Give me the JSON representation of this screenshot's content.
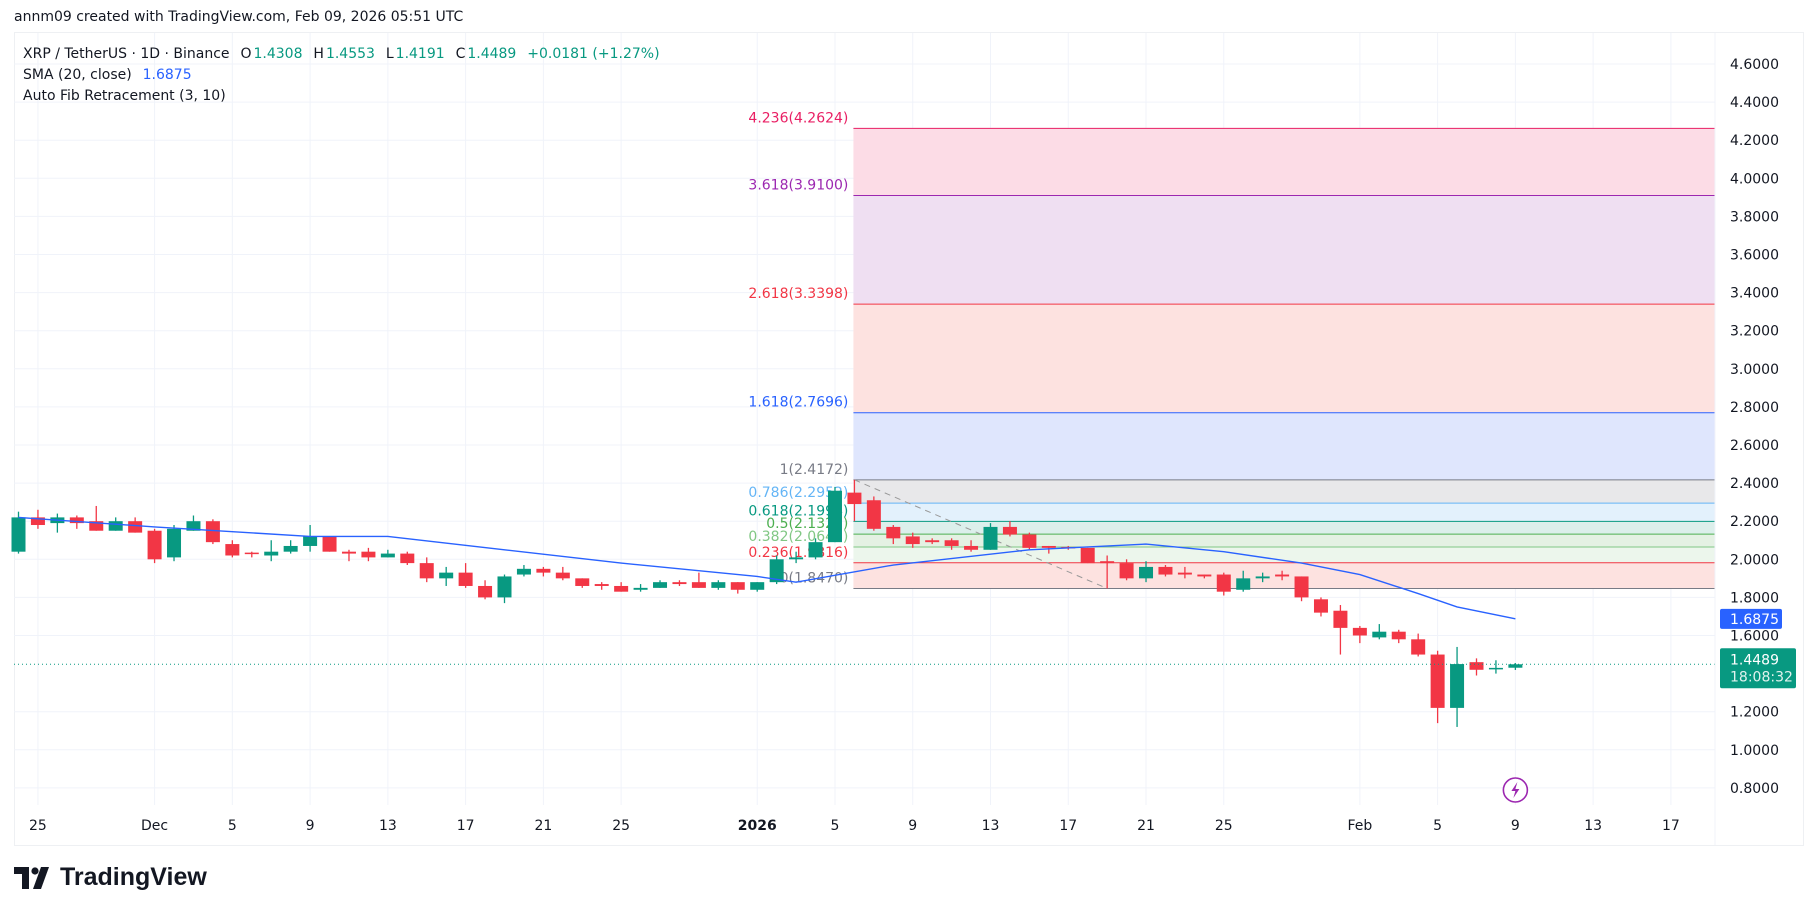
{
  "credit": "annm09 created with TradingView.com, Feb 09, 2026 05:51 UTC",
  "legend": {
    "symbol": "XRP / TetherUS · 1D · Binance",
    "o_label": "O",
    "o": "1.4308",
    "h_label": "H",
    "h": "1.4553",
    "l_label": "L",
    "l": "1.4191",
    "c_label": "C",
    "c": "1.4489",
    "change": "+0.0181 (+1.27%)",
    "sma_label": "SMA (20, close)",
    "sma_value": "1.6875",
    "fib_label": "Auto Fib Retracement (3, 10)"
  },
  "logo": {
    "text": "TradingView",
    "icon": "tradingview-logo-icon"
  },
  "icons": {
    "lightning": "lightning-icon"
  },
  "colors": {
    "up": "#089981",
    "down": "#f23645",
    "sma": "#2962ff",
    "grid": "#f0f3fa"
  },
  "chart_data": {
    "type": "candlestick",
    "title": "",
    "ylim": [
      0.7,
      4.7
    ],
    "grid": true,
    "y_ticks": [
      "4.6000",
      "4.4000",
      "4.2000",
      "4.0000",
      "3.8000",
      "3.6000",
      "3.4000",
      "3.2000",
      "3.0000",
      "2.8000",
      "2.6000",
      "2.4000",
      "2.2000",
      "2.0000",
      "1.8000",
      "1.6000",
      "1.2000",
      "1.0000",
      "0.8000"
    ],
    "x_ticks": [
      {
        "label": "25",
        "date": "2025-11-25"
      },
      {
        "label": "Dec",
        "date": "2025-12-01"
      },
      {
        "label": "5",
        "date": "2025-12-05"
      },
      {
        "label": "9",
        "date": "2025-12-09"
      },
      {
        "label": "13",
        "date": "2025-12-13"
      },
      {
        "label": "17",
        "date": "2025-12-17"
      },
      {
        "label": "21",
        "date": "2025-12-21"
      },
      {
        "label": "25",
        "date": "2025-12-25"
      },
      {
        "label": "2026",
        "date": "2026-01-01"
      },
      {
        "label": "5",
        "date": "2026-01-05"
      },
      {
        "label": "9",
        "date": "2026-01-09"
      },
      {
        "label": "13",
        "date": "2026-01-13"
      },
      {
        "label": "17",
        "date": "2026-01-17"
      },
      {
        "label": "21",
        "date": "2026-01-21"
      },
      {
        "label": "25",
        "date": "2026-01-25"
      },
      {
        "label": "Feb",
        "date": "2026-02-01"
      },
      {
        "label": "5",
        "date": "2026-02-05"
      },
      {
        "label": "9",
        "date": "2026-02-09"
      },
      {
        "label": "13",
        "date": "2026-02-13"
      },
      {
        "label": "17",
        "date": "2026-02-17"
      }
    ],
    "candles": [
      {
        "d": "2025-11-24",
        "o": 2.04,
        "h": 2.25,
        "l": 2.03,
        "c": 2.22
      },
      {
        "d": "2025-11-25",
        "o": 2.22,
        "h": 2.26,
        "l": 2.16,
        "c": 2.18
      },
      {
        "d": "2025-11-26",
        "o": 2.19,
        "h": 2.24,
        "l": 2.14,
        "c": 2.22
      },
      {
        "d": "2025-11-27",
        "o": 2.22,
        "h": 2.23,
        "l": 2.16,
        "c": 2.19
      },
      {
        "d": "2025-11-28",
        "o": 2.2,
        "h": 2.28,
        "l": 2.15,
        "c": 2.15
      },
      {
        "d": "2025-11-29",
        "o": 2.15,
        "h": 2.22,
        "l": 2.15,
        "c": 2.2
      },
      {
        "d": "2025-11-30",
        "o": 2.2,
        "h": 2.22,
        "l": 2.14,
        "c": 2.14
      },
      {
        "d": "2025-12-01",
        "o": 2.15,
        "h": 2.16,
        "l": 1.98,
        "c": 2.0
      },
      {
        "d": "2025-12-02",
        "o": 2.01,
        "h": 2.18,
        "l": 1.99,
        "c": 2.16
      },
      {
        "d": "2025-12-03",
        "o": 2.15,
        "h": 2.23,
        "l": 2.15,
        "c": 2.2
      },
      {
        "d": "2025-12-04",
        "o": 2.2,
        "h": 2.21,
        "l": 2.08,
        "c": 2.09
      },
      {
        "d": "2025-12-05",
        "o": 2.08,
        "h": 2.1,
        "l": 2.01,
        "c": 2.02
      },
      {
        "d": "2025-12-06",
        "o": 2.035,
        "h": 2.04,
        "l": 2.01,
        "c": 2.03
      },
      {
        "d": "2025-12-07",
        "o": 2.02,
        "h": 2.1,
        "l": 1.99,
        "c": 2.04
      },
      {
        "d": "2025-12-08",
        "o": 2.04,
        "h": 2.1,
        "l": 2.03,
        "c": 2.07
      },
      {
        "d": "2025-12-09",
        "o": 2.07,
        "h": 2.18,
        "l": 2.04,
        "c": 2.12
      },
      {
        "d": "2025-12-10",
        "o": 2.12,
        "h": 2.12,
        "l": 2.04,
        "c": 2.04
      },
      {
        "d": "2025-12-11",
        "o": 2.04,
        "h": 2.05,
        "l": 1.99,
        "c": 2.03
      },
      {
        "d": "2025-12-12",
        "o": 2.04,
        "h": 2.06,
        "l": 1.99,
        "c": 2.01
      },
      {
        "d": "2025-12-13",
        "o": 2.01,
        "h": 2.05,
        "l": 2.01,
        "c": 2.03
      },
      {
        "d": "2025-12-14",
        "o": 2.03,
        "h": 2.04,
        "l": 1.97,
        "c": 1.98
      },
      {
        "d": "2025-12-15",
        "o": 1.98,
        "h": 2.01,
        "l": 1.88,
        "c": 1.9
      },
      {
        "d": "2025-12-16",
        "o": 1.9,
        "h": 1.96,
        "l": 1.86,
        "c": 1.93
      },
      {
        "d": "2025-12-17",
        "o": 1.93,
        "h": 1.98,
        "l": 1.85,
        "c": 1.86
      },
      {
        "d": "2025-12-18",
        "o": 1.86,
        "h": 1.89,
        "l": 1.79,
        "c": 1.8
      },
      {
        "d": "2025-12-19",
        "o": 1.8,
        "h": 1.92,
        "l": 1.77,
        "c": 1.91
      },
      {
        "d": "2025-12-20",
        "o": 1.92,
        "h": 1.97,
        "l": 1.91,
        "c": 1.95
      },
      {
        "d": "2025-12-21",
        "o": 1.95,
        "h": 1.96,
        "l": 1.91,
        "c": 1.93
      },
      {
        "d": "2025-12-22",
        "o": 1.93,
        "h": 1.96,
        "l": 1.89,
        "c": 1.9
      },
      {
        "d": "2025-12-23",
        "o": 1.9,
        "h": 1.9,
        "l": 1.85,
        "c": 1.86
      },
      {
        "d": "2025-12-24",
        "o": 1.87,
        "h": 1.88,
        "l": 1.84,
        "c": 1.86
      },
      {
        "d": "2025-12-25",
        "o": 1.86,
        "h": 1.88,
        "l": 1.83,
        "c": 1.83
      },
      {
        "d": "2025-12-26",
        "o": 1.84,
        "h": 1.87,
        "l": 1.83,
        "c": 1.85
      },
      {
        "d": "2025-12-27",
        "o": 1.85,
        "h": 1.89,
        "l": 1.85,
        "c": 1.88
      },
      {
        "d": "2025-12-28",
        "o": 1.88,
        "h": 1.89,
        "l": 1.86,
        "c": 1.87
      },
      {
        "d": "2025-12-29",
        "o": 1.88,
        "h": 1.93,
        "l": 1.85,
        "c": 1.85
      },
      {
        "d": "2025-12-30",
        "o": 1.85,
        "h": 1.89,
        "l": 1.84,
        "c": 1.88
      },
      {
        "d": "2025-12-31",
        "o": 1.88,
        "h": 1.88,
        "l": 1.82,
        "c": 1.84
      },
      {
        "d": "2026-01-01",
        "o": 1.84,
        "h": 1.88,
        "l": 1.83,
        "c": 1.88
      },
      {
        "d": "2026-01-02",
        "o": 1.88,
        "h": 2.02,
        "l": 1.87,
        "c": 2.0
      },
      {
        "d": "2026-01-03",
        "o": 2.0,
        "h": 2.04,
        "l": 1.98,
        "c": 2.01
      },
      {
        "d": "2026-01-04",
        "o": 2.01,
        "h": 2.11,
        "l": 2.0,
        "c": 2.09
      },
      {
        "d": "2026-01-05",
        "o": 2.09,
        "h": 2.38,
        "l": 2.09,
        "c": 2.36
      },
      {
        "d": "2026-01-06",
        "o": 2.35,
        "h": 2.4172,
        "l": 2.2,
        "c": 2.29
      },
      {
        "d": "2026-01-07",
        "o": 2.31,
        "h": 2.33,
        "l": 2.15,
        "c": 2.16
      },
      {
        "d": "2026-01-08",
        "o": 2.17,
        "h": 2.18,
        "l": 2.08,
        "c": 2.11
      },
      {
        "d": "2026-01-09",
        "o": 2.12,
        "h": 2.14,
        "l": 2.06,
        "c": 2.08
      },
      {
        "d": "2026-01-10",
        "o": 2.1,
        "h": 2.11,
        "l": 2.08,
        "c": 2.09
      },
      {
        "d": "2026-01-11",
        "o": 2.1,
        "h": 2.11,
        "l": 2.05,
        "c": 2.07
      },
      {
        "d": "2026-01-12",
        "o": 2.07,
        "h": 2.1,
        "l": 2.04,
        "c": 2.05
      },
      {
        "d": "2026-01-13",
        "o": 2.05,
        "h": 2.19,
        "l": 2.05,
        "c": 2.17
      },
      {
        "d": "2026-01-14",
        "o": 2.17,
        "h": 2.2,
        "l": 2.12,
        "c": 2.13
      },
      {
        "d": "2026-01-15",
        "o": 2.13,
        "h": 2.14,
        "l": 2.05,
        "c": 2.06
      },
      {
        "d": "2026-01-16",
        "o": 2.07,
        "h": 2.07,
        "l": 2.03,
        "c": 2.06
      },
      {
        "d": "2026-01-17",
        "o": 2.065,
        "h": 2.07,
        "l": 2.05,
        "c": 2.06
      },
      {
        "d": "2026-01-18",
        "o": 2.06,
        "h": 2.06,
        "l": 1.98,
        "c": 1.98
      },
      {
        "d": "2026-01-19",
        "o": 1.99,
        "h": 2.02,
        "l": 1.847,
        "c": 1.98
      },
      {
        "d": "2026-01-20",
        "o": 1.98,
        "h": 2.0,
        "l": 1.89,
        "c": 1.9
      },
      {
        "d": "2026-01-21",
        "o": 1.9,
        "h": 1.99,
        "l": 1.88,
        "c": 1.96
      },
      {
        "d": "2026-01-22",
        "o": 1.96,
        "h": 1.97,
        "l": 1.91,
        "c": 1.92
      },
      {
        "d": "2026-01-23",
        "o": 1.93,
        "h": 1.96,
        "l": 1.9,
        "c": 1.92
      },
      {
        "d": "2026-01-24",
        "o": 1.92,
        "h": 1.92,
        "l": 1.9,
        "c": 1.91
      },
      {
        "d": "2026-01-25",
        "o": 1.92,
        "h": 1.93,
        "l": 1.81,
        "c": 1.83
      },
      {
        "d": "2026-01-26",
        "o": 1.84,
        "h": 1.94,
        "l": 1.83,
        "c": 1.9
      },
      {
        "d": "2026-01-27",
        "o": 1.9,
        "h": 1.93,
        "l": 1.88,
        "c": 1.91
      },
      {
        "d": "2026-01-28",
        "o": 1.92,
        "h": 1.94,
        "l": 1.89,
        "c": 1.91
      },
      {
        "d": "2026-01-29",
        "o": 1.91,
        "h": 1.91,
        "l": 1.78,
        "c": 1.8
      },
      {
        "d": "2026-01-30",
        "o": 1.79,
        "h": 1.8,
        "l": 1.7,
        "c": 1.72
      },
      {
        "d": "2026-01-31",
        "o": 1.73,
        "h": 1.76,
        "l": 1.5,
        "c": 1.64
      },
      {
        "d": "2026-02-01",
        "o": 1.64,
        "h": 1.65,
        "l": 1.56,
        "c": 1.6
      },
      {
        "d": "2026-02-02",
        "o": 1.59,
        "h": 1.66,
        "l": 1.58,
        "c": 1.62
      },
      {
        "d": "2026-02-03",
        "o": 1.62,
        "h": 1.63,
        "l": 1.56,
        "c": 1.58
      },
      {
        "d": "2026-02-04",
        "o": 1.58,
        "h": 1.61,
        "l": 1.49,
        "c": 1.5
      },
      {
        "d": "2026-02-05",
        "o": 1.5,
        "h": 1.52,
        "l": 1.14,
        "c": 1.22
      },
      {
        "d": "2026-02-06",
        "o": 1.22,
        "h": 1.54,
        "l": 1.12,
        "c": 1.45
      },
      {
        "d": "2026-02-07",
        "o": 1.46,
        "h": 1.48,
        "l": 1.39,
        "c": 1.42
      },
      {
        "d": "2026-02-08",
        "o": 1.425,
        "h": 1.47,
        "l": 1.4,
        "c": 1.43
      },
      {
        "d": "2026-02-09",
        "o": 1.4308,
        "h": 1.4553,
        "l": 1.4191,
        "c": 1.4489
      }
    ],
    "sma": {
      "name": "SMA (20, close)",
      "points": [
        {
          "d": "2025-11-24",
          "v": 2.22
        },
        {
          "d": "2025-12-01",
          "v": 2.17
        },
        {
          "d": "2025-12-09",
          "v": 2.12
        },
        {
          "d": "2025-12-13",
          "v": 2.12
        },
        {
          "d": "2025-12-19",
          "v": 2.05
        },
        {
          "d": "2025-12-25",
          "v": 1.98
        },
        {
          "d": "2026-01-01",
          "v": 1.91
        },
        {
          "d": "2026-01-03",
          "v": 1.88
        },
        {
          "d": "2026-01-08",
          "v": 1.97
        },
        {
          "d": "2026-01-15",
          "v": 2.05
        },
        {
          "d": "2026-01-21",
          "v": 2.08
        },
        {
          "d": "2026-01-25",
          "v": 2.04
        },
        {
          "d": "2026-01-29",
          "v": 1.98
        },
        {
          "d": "2026-02-01",
          "v": 1.92
        },
        {
          "d": "2026-02-04",
          "v": 1.82
        },
        {
          "d": "2026-02-06",
          "v": 1.75
        },
        {
          "d": "2026-02-09",
          "v": 1.6875
        }
      ]
    },
    "fib": {
      "start_date": "2026-01-06",
      "trend": {
        "from": {
          "d": "2026-01-06",
          "v": 2.4172
        },
        "to": {
          "d": "2026-01-19",
          "v": 1.847
        }
      },
      "levels": [
        {
          "label": "4.236(4.2624)",
          "value": 4.2624,
          "color": "#e91e63",
          "fill": "#fcdce6"
        },
        {
          "label": "3.618(3.9100)",
          "value": 3.91,
          "color": "#9c27b0",
          "fill": "#efdff2"
        },
        {
          "label": "2.618(3.3398)",
          "value": 3.3398,
          "color": "#f23645",
          "fill": "#fde2e0"
        },
        {
          "label": "1.618(2.7696)",
          "value": 2.7696,
          "color": "#2962ff",
          "fill": "#dfe6fd"
        },
        {
          "label": "1(2.4172)",
          "value": 2.4172,
          "color": "#787b86",
          "fill": "#e8e8ea"
        },
        {
          "label": "0.786(2.2952)",
          "value": 2.2952,
          "color": "#64b5f6",
          "fill": "#e3f1fc"
        },
        {
          "label": "0.618(2.1994)",
          "value": 2.1994,
          "color": "#089981",
          "fill": "#dcefeb"
        },
        {
          "label": "0.5(2.1321)",
          "value": 2.1321,
          "color": "#4caf50",
          "fill": "#e4f1e3"
        },
        {
          "label": "0.382(2.0648)",
          "value": 2.0648,
          "color": "#81c784",
          "fill": "#ecf6ec"
        },
        {
          "label": "0.236(1.9816)",
          "value": 1.9816,
          "color": "#f23645",
          "fill": "#fde2e0"
        },
        {
          "label": "0(1.8470)",
          "value": 1.847,
          "color": "#787b86",
          "fill": null
        }
      ]
    },
    "last_price": {
      "value": 1.4489,
      "label": "1.4489",
      "countdown": "18:08:32",
      "color": "#089981"
    },
    "sma_tag": {
      "value": 1.6875,
      "label": "1.6875",
      "color": "#2962ff"
    }
  }
}
